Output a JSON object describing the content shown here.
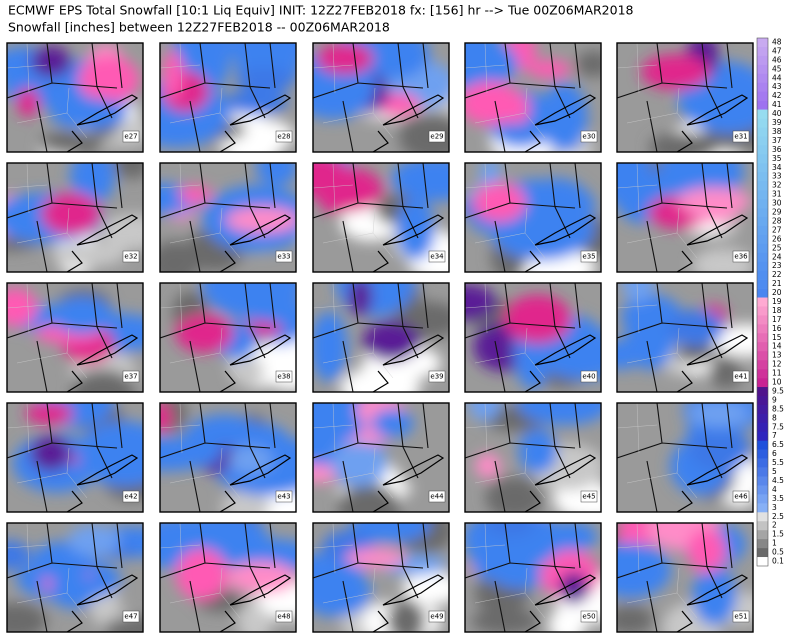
{
  "header": {
    "title": "ECMWF EPS Total Snowfall [10:1 Liq Equiv] INIT: 12Z27FEB2018 fx: [156] hr --> Tue 00Z06MAR2018",
    "subtitle": "Snowfall [inches] between 12Z27FEB2018 -- 00Z06MAR2018"
  },
  "panels": [
    {
      "label": "e27"
    },
    {
      "label": "e28"
    },
    {
      "label": "e29"
    },
    {
      "label": "e30"
    },
    {
      "label": "e31"
    },
    {
      "label": "e32"
    },
    {
      "label": "e33"
    },
    {
      "label": "e34"
    },
    {
      "label": "e35"
    },
    {
      "label": "e36"
    },
    {
      "label": "e37"
    },
    {
      "label": "e38"
    },
    {
      "label": "e39"
    },
    {
      "label": "e40"
    },
    {
      "label": "e41"
    },
    {
      "label": "e42"
    },
    {
      "label": "e43"
    },
    {
      "label": "e44"
    },
    {
      "label": "e45"
    },
    {
      "label": "e46"
    },
    {
      "label": "e47"
    },
    {
      "label": "e48"
    },
    {
      "label": "e49"
    },
    {
      "label": "e50"
    },
    {
      "label": "e51"
    }
  ],
  "colorbar": {
    "labels": [
      "48",
      "47",
      "46",
      "45",
      "44",
      "43",
      "42",
      "41",
      "40",
      "39",
      "38",
      "37",
      "36",
      "35",
      "34",
      "33",
      "32",
      "31",
      "30",
      "29",
      "28",
      "27",
      "26",
      "25",
      "24",
      "23",
      "22",
      "21",
      "20",
      "19",
      "18",
      "17",
      "16",
      "15",
      "14",
      "13",
      "12",
      "11",
      "10",
      "9.5",
      "9",
      "8.5",
      "8",
      "7.5",
      "7",
      "6.5",
      "6",
      "5.5",
      "5",
      "4.5",
      "4",
      "3.5",
      "3",
      "2.5",
      "2",
      "1.5",
      "1",
      "0.5",
      "0.1"
    ]
  }
}
